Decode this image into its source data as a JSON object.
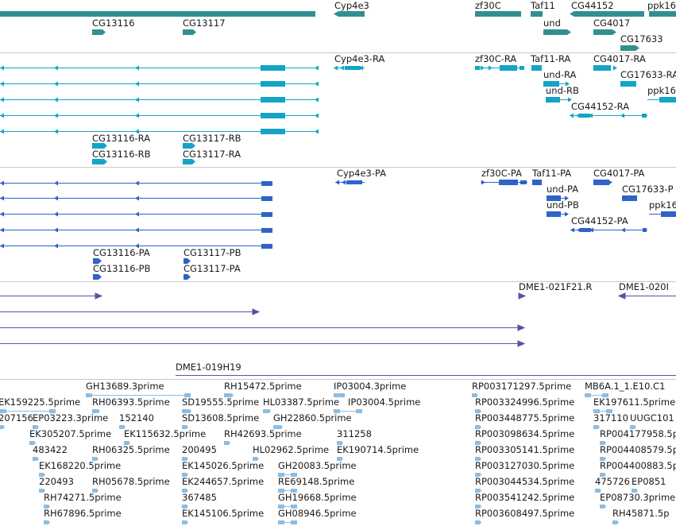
{
  "colors": {
    "gene": "#31908f",
    "transcript": "#13a4c6",
    "protein": "#2f63c8",
    "clone": "#6a4aa6",
    "est": "#8dbde1",
    "separator": "#c8c8c8",
    "text": "#1a1a1a"
  },
  "tracks": [
    {
      "id": "genes",
      "features": [
        {
          "label": "Cyp4e3"
        },
        {
          "label": "zf30C"
        },
        {
          "label": "Taf11"
        },
        {
          "label": "CG44152"
        },
        {
          "label": "ppk16"
        },
        {
          "label": "CG13116"
        },
        {
          "label": "CG13117"
        },
        {
          "label": "und"
        },
        {
          "label": "CG4017"
        },
        {
          "label": "CG17633"
        }
      ]
    },
    {
      "id": "transcripts",
      "features": [
        {
          "label": "Cyp4e3-RA"
        },
        {
          "label": "zf30C-RA"
        },
        {
          "label": "Taf11-RA"
        },
        {
          "label": "CG4017-RA"
        },
        {
          "label": "und-RA"
        },
        {
          "label": "CG17633-RA"
        },
        {
          "label": "und-RB"
        },
        {
          "label": "ppk16"
        },
        {
          "label": "CG44152-RA"
        },
        {
          "label": "CG13116-RA"
        },
        {
          "label": "CG13117-RB"
        },
        {
          "label": "CG13116-RB"
        },
        {
          "label": "CG13117-RA"
        }
      ]
    },
    {
      "id": "proteins",
      "features": [
        {
          "label": "Cyp4e3-PA"
        },
        {
          "label": "zf30C-PA"
        },
        {
          "label": "Taf11-PA"
        },
        {
          "label": "CG4017-PA"
        },
        {
          "label": "und-PA"
        },
        {
          "label": "CG17633-P"
        },
        {
          "label": "und-PB"
        },
        {
          "label": "ppk16"
        },
        {
          "label": "CG44152-PA"
        },
        {
          "label": "CG13116-PA"
        },
        {
          "label": "CG13117-PB"
        },
        {
          "label": "CG13116-PB"
        },
        {
          "label": "CG13117-PA"
        }
      ]
    },
    {
      "id": "clones",
      "features": [
        {
          "label": "DME1-021F21.R"
        },
        {
          "label": "DME1-020I"
        },
        {
          "label": "DME1-019H19"
        }
      ]
    },
    {
      "id": "ests",
      "features": [
        {
          "label": "GH13689.3prime"
        },
        {
          "label": "RH15472.5prime"
        },
        {
          "label": "IP03004.3prime"
        },
        {
          "label": "RP003171297.5prime"
        },
        {
          "label": "MB6A.1_1.E10.C1"
        },
        {
          "label": "EK159225.5prime"
        },
        {
          "label": "RH06393.5prime"
        },
        {
          "label": "SD19555.5prime"
        },
        {
          "label": "HL03387.5prime"
        },
        {
          "label": "IP03004.5prime"
        },
        {
          "label": "RP003324996.5prime"
        },
        {
          "label": "EK197611.5prime"
        },
        {
          "label": "207156"
        },
        {
          "label": "EP03223.3prime"
        },
        {
          "label": "152140"
        },
        {
          "label": "SD13608.5prime"
        },
        {
          "label": "GH22860.5prime"
        },
        {
          "label": "RP003448775.5prime"
        },
        {
          "label": "317110"
        },
        {
          "label": "UUGC101"
        },
        {
          "label": "EK305207.5prime"
        },
        {
          "label": "EK115632.5prime"
        },
        {
          "label": "RH42693.5prime"
        },
        {
          "label": "311258"
        },
        {
          "label": "RP003098634.5prime"
        },
        {
          "label": "RP004177958.5p"
        },
        {
          "label": "483422"
        },
        {
          "label": "RH06325.5prime"
        },
        {
          "label": "200495"
        },
        {
          "label": "HL02962.5prime"
        },
        {
          "label": "EK190714.5prime"
        },
        {
          "label": "RP003305141.5prime"
        },
        {
          "label": "RP004408579.5p"
        },
        {
          "label": "EK168220.5prime"
        },
        {
          "label": "EK145026.5prime"
        },
        {
          "label": "GH20083.5prime"
        },
        {
          "label": "RP003127030.5prime"
        },
        {
          "label": "RP004400883.5p"
        },
        {
          "label": "220493"
        },
        {
          "label": "RH05678.5prime"
        },
        {
          "label": "EK244657.5prime"
        },
        {
          "label": "RE69148.5prime"
        },
        {
          "label": "RP003044534.5prime"
        },
        {
          "label": "475726"
        },
        {
          "label": "EP0851"
        },
        {
          "label": "RH74271.5prime"
        },
        {
          "label": "367485"
        },
        {
          "label": "GH19668.5prime"
        },
        {
          "label": "RP003541242.5prime"
        },
        {
          "label": "EP08730.3prime"
        },
        {
          "label": "RH67896.5prime"
        },
        {
          "label": "EK145106.5prime"
        },
        {
          "label": "GH08946.5prime"
        },
        {
          "label": "RP003608497.5prime"
        },
        {
          "label": "RH45871.5p"
        }
      ]
    }
  ]
}
